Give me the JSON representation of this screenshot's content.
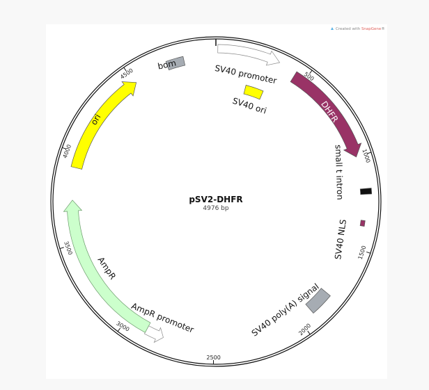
{
  "watermark": {
    "prefix": "Created with ",
    "brand": "SnapGene",
    "suffix": "®",
    "brand_color": "#e0605a"
  },
  "plasmid": {
    "name": "pSV2-DHFR",
    "length_label": "4976 bp",
    "length": 4976
  },
  "ticks": [
    "500",
    "1000",
    "1500",
    "2000",
    "2500",
    "3000",
    "3500",
    "4000",
    "4500"
  ],
  "features": [
    {
      "name": "SV40 promoter",
      "start": 10,
      "end": 340,
      "direction": "forward",
      "color": "#ffffff"
    },
    {
      "name": "SV40 ori",
      "start": 200,
      "end": 320,
      "direction": "none",
      "color": "#ffff00"
    },
    {
      "name": "DHFR",
      "start": 440,
      "end": 1000,
      "direction": "forward",
      "color": "#993366"
    },
    {
      "name": "small t intron",
      "start": 1175,
      "end": 1205,
      "direction": "none",
      "color": "#111111"
    },
    {
      "name": "SV40 NLS",
      "start": 1345,
      "end": 1375,
      "direction": "forward",
      "color": "#993366"
    },
    {
      "name": "SV40 poly(A) signal",
      "start": 1790,
      "end": 1920,
      "direction": "none",
      "color": "#a6acb3"
    },
    {
      "name": "AmpR promoter",
      "start": 2780,
      "end": 2880,
      "direction": "reverse",
      "color": "#ffffff"
    },
    {
      "name": "AmpR",
      "start": 2880,
      "end": 3740,
      "direction": "forward",
      "color": "#ccffcc"
    },
    {
      "name": "ori",
      "start": 3920,
      "end": 4510,
      "direction": "forward",
      "color": "#ffff00"
    },
    {
      "name": "bom",
      "start": 4705,
      "end": 4800,
      "direction": "none",
      "color": "#a6acb3"
    }
  ]
}
